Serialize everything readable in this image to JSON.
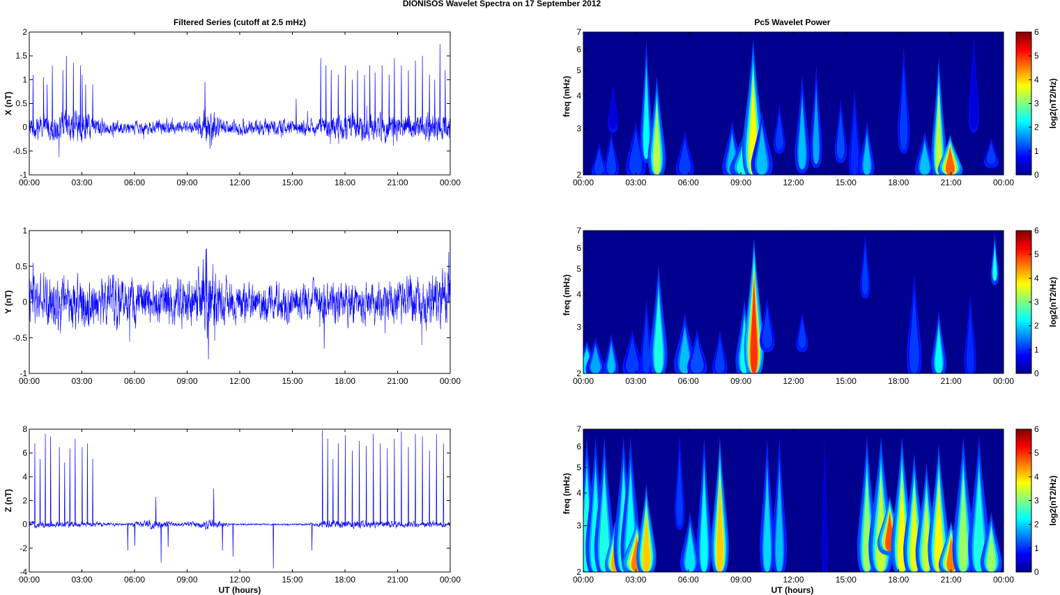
{
  "figure": {
    "title": "DIONISOS Wavelet Spectra on 17 September 2012",
    "left_column_title": "Filtered Series (cutoff at 2.5 mHz)",
    "right_column_title": "Pc5 Wavelet Power",
    "x_axis_label": "UT (hours)"
  },
  "colors": {
    "trace": "#0000ff",
    "spectrum_background": "#00008f",
    "axis": "#000000"
  },
  "chart_data": [
    {
      "type": "line",
      "panel": "x-series",
      "ylabel": "X (nT)",
      "xlim": [
        "00:00",
        "24:00"
      ],
      "ylim": [
        -1,
        2
      ],
      "x_ticks": [
        "00:00",
        "03:00",
        "06:00",
        "09:00",
        "12:00",
        "15:00",
        "18:00",
        "21:00",
        "00:00"
      ],
      "y_ticks": [
        "-1",
        "-0.5",
        "0",
        "0.5",
        "1",
        "1.5",
        "2"
      ],
      "noise_envelope_nT": {
        "hours": [
          0,
          3,
          4.5,
          9.5,
          10.2,
          11,
          16.5,
          18,
          21,
          24
        ],
        "amplitude": [
          0.15,
          0.25,
          0.1,
          0.1,
          0.35,
          0.12,
          0.12,
          0.2,
          0.2,
          0.2
        ]
      },
      "spikes": {
        "hours": [
          0.2,
          0.8,
          1.0,
          1.3,
          1.9,
          2.1,
          2.5,
          2.9,
          3.0,
          3.2,
          3.6,
          10.0,
          15.2,
          16.6,
          16.9,
          17.2,
          17.6,
          18.0,
          18.4,
          18.7,
          19.1,
          19.4,
          19.7,
          20.1,
          20.5,
          20.8,
          21.2,
          21.6,
          22.0,
          22.4,
          22.8,
          23.1,
          23.4,
          23.7
        ],
        "peak_nT": [
          1.1,
          1.05,
          0.9,
          1.3,
          1.2,
          1.5,
          1.35,
          1.3,
          1.1,
          0.9,
          0.9,
          0.95,
          0.6,
          1.45,
          1.3,
          1.2,
          1.1,
          1.3,
          1.0,
          1.2,
          1.1,
          1.3,
          1.15,
          1.3,
          1.1,
          1.45,
          1.3,
          1.2,
          1.4,
          1.5,
          1.1,
          1.0,
          1.75,
          1.2
        ]
      }
    },
    {
      "type": "line",
      "panel": "y-series",
      "ylabel": "Y (nT)",
      "xlim": [
        "00:00",
        "24:00"
      ],
      "ylim": [
        -1,
        1
      ],
      "x_ticks": [
        "00:00",
        "03:00",
        "06:00",
        "09:00",
        "12:00",
        "15:00",
        "18:00",
        "21:00",
        "00:00"
      ],
      "y_ticks": [
        "-1",
        "-0.5",
        "0",
        "0.5",
        "1"
      ],
      "noise_envelope_nT": {
        "hours": [
          0,
          3,
          6,
          9.5,
          10.2,
          11,
          16,
          18,
          21,
          24
        ],
        "amplitude": [
          0.25,
          0.25,
          0.22,
          0.25,
          0.45,
          0.2,
          0.18,
          0.22,
          0.2,
          0.3
        ]
      },
      "spikes": {
        "hours": [
          0.2,
          9.9,
          10.1,
          10.2,
          16.8,
          23.9
        ],
        "peak_nT": [
          0.55,
          0.6,
          0.75,
          -0.8,
          -0.65,
          0.7
        ]
      }
    },
    {
      "type": "line",
      "panel": "z-series",
      "ylabel": "Z (nT)",
      "xlim": [
        "00:00",
        "24:00"
      ],
      "ylim": [
        -4,
        8
      ],
      "x_ticks": [
        "00:00",
        "03:00",
        "06:00",
        "09:00",
        "12:00",
        "15:00",
        "18:00",
        "21:00",
        "00:00"
      ],
      "y_ticks": [
        "-4",
        "-2",
        "0",
        "2",
        "4",
        "6",
        "8"
      ],
      "noise_envelope_nT": {
        "hours": [
          0,
          4,
          5.5,
          7,
          8.5,
          10.5,
          11.5,
          16,
          17,
          24
        ],
        "amplitude": [
          0.2,
          0.15,
          0.05,
          0.3,
          0.1,
          0.3,
          0.05,
          0.05,
          0.25,
          0.15
        ]
      },
      "spikes": {
        "hours": [
          0.3,
          0.6,
          0.9,
          1.2,
          1.7,
          2.0,
          2.3,
          2.6,
          3.0,
          3.3,
          3.6,
          5.6,
          6.0,
          7.2,
          7.5,
          7.9,
          10.5,
          11.0,
          11.6,
          13.9,
          16.1,
          16.7,
          17.0,
          17.3,
          17.6,
          18.0,
          18.4,
          18.8,
          19.2,
          19.6,
          20.0,
          20.4,
          20.8,
          21.2,
          21.6,
          22.0,
          22.4,
          22.8,
          23.2,
          23.6
        ],
        "peak_nT": [
          6.8,
          5.5,
          7.6,
          7.4,
          6.5,
          5.2,
          6.4,
          7.2,
          6.5,
          6.8,
          5.5,
          -2.2,
          -1.8,
          2.3,
          -3.2,
          -1.9,
          3.0,
          -2.2,
          -2.7,
          -3.7,
          -2.2,
          7.9,
          7.2,
          5.5,
          6.8,
          7.5,
          6.2,
          7.0,
          6.6,
          7.6,
          6.8,
          6.4,
          7.2,
          7.8,
          6.5,
          7.6,
          7.4,
          6.2,
          7.6,
          6.8
        ]
      }
    },
    {
      "type": "heatmap",
      "panel": "x-spectrum",
      "ylabel": "freq (mHz)",
      "colorbar_label": "log2(nT2/Hz)",
      "colorbar_range": [
        0,
        6
      ],
      "colorbar_ticks": [
        "0",
        "1",
        "2",
        "3",
        "4",
        "5",
        "6"
      ],
      "xlim": [
        "00:00",
        "24:00"
      ],
      "ylim_mHz": [
        2,
        7
      ],
      "yscale": "log",
      "x_ticks": [
        "00:00",
        "03:00",
        "06:00",
        "09:00",
        "12:00",
        "15:00",
        "18:00",
        "21:00",
        "00:00"
      ],
      "y_ticks": [
        "2",
        "3",
        "4",
        "5",
        "6",
        "7"
      ],
      "features": [
        {
          "t": 0.9,
          "f_lo": 2.0,
          "f_hi": 2.7,
          "power": 2.0,
          "w": 0.15
        },
        {
          "t": 1.6,
          "f_lo": 2.0,
          "f_hi": 3.0,
          "power": 2.0,
          "w": 0.15
        },
        {
          "t": 1.7,
          "f_lo": 3.0,
          "f_hi": 4.5,
          "power": 1.5,
          "w": 0.1
        },
        {
          "t": 3.0,
          "f_lo": 2.0,
          "f_hi": 3.3,
          "power": 2.0,
          "w": 0.2
        },
        {
          "t": 3.6,
          "f_lo": 2.3,
          "f_hi": 7.0,
          "power": 3.0,
          "w": 0.12
        },
        {
          "t": 4.2,
          "f_lo": 2.0,
          "f_hi": 5.0,
          "power": 3.7,
          "w": 0.18
        },
        {
          "t": 5.8,
          "f_lo": 2.0,
          "f_hi": 3.0,
          "power": 2.0,
          "w": 0.18
        },
        {
          "t": 8.5,
          "f_lo": 2.0,
          "f_hi": 3.3,
          "power": 2.5,
          "w": 0.2
        },
        {
          "t": 9.2,
          "f_lo": 2.0,
          "f_hi": 3.0,
          "power": 3.2,
          "w": 0.3
        },
        {
          "t": 9.7,
          "f_lo": 2.0,
          "f_hi": 7.0,
          "power": 4.2,
          "w": 0.22
        },
        {
          "t": 10.2,
          "f_lo": 2.0,
          "f_hi": 3.6,
          "power": 2.5,
          "w": 0.22
        },
        {
          "t": 11.2,
          "f_lo": 2.5,
          "f_hi": 3.8,
          "power": 2.0,
          "w": 0.12
        },
        {
          "t": 12.5,
          "f_lo": 2.1,
          "f_hi": 5.0,
          "power": 2.5,
          "w": 0.15
        },
        {
          "t": 13.3,
          "f_lo": 2.2,
          "f_hi": 5.5,
          "power": 2.3,
          "w": 0.12
        },
        {
          "t": 14.7,
          "f_lo": 2.3,
          "f_hi": 4.0,
          "power": 2.2,
          "w": 0.12
        },
        {
          "t": 15.5,
          "f_lo": 2.0,
          "f_hi": 4.5,
          "power": 1.8,
          "w": 0.12
        },
        {
          "t": 16.2,
          "f_lo": 2.0,
          "f_hi": 3.3,
          "power": 2.5,
          "w": 0.15
        },
        {
          "t": 18.3,
          "f_lo": 2.5,
          "f_hi": 6.5,
          "power": 2.0,
          "w": 0.12
        },
        {
          "t": 19.5,
          "f_lo": 2.0,
          "f_hi": 3.0,
          "power": 2.5,
          "w": 0.2
        },
        {
          "t": 20.3,
          "f_lo": 2.0,
          "f_hi": 6.0,
          "power": 3.8,
          "w": 0.15
        },
        {
          "t": 20.95,
          "f_lo": 2.0,
          "f_hi": 2.9,
          "power": 5.2,
          "w": 0.25
        },
        {
          "t": 22.3,
          "f_lo": 3.0,
          "f_hi": 7.0,
          "power": 1.5,
          "w": 0.1
        },
        {
          "t": 23.3,
          "f_lo": 2.2,
          "f_hi": 2.8,
          "power": 2.0,
          "w": 0.15
        }
      ]
    },
    {
      "type": "heatmap",
      "panel": "y-spectrum",
      "ylabel": "freq (mHz)",
      "colorbar_label": "log2(nT2/Hz)",
      "colorbar_range": [
        0,
        6
      ],
      "colorbar_ticks": [
        "0",
        "1",
        "2",
        "3",
        "4",
        "5",
        "6"
      ],
      "xlim": [
        "00:00",
        "24:00"
      ],
      "ylim_mHz": [
        2,
        7
      ],
      "yscale": "log",
      "x_ticks": [
        "00:00",
        "03:00",
        "06:00",
        "09:00",
        "12:00",
        "15:00",
        "18:00",
        "21:00",
        "00:00"
      ],
      "y_ticks": [
        "2",
        "3",
        "4",
        "5",
        "6",
        "7"
      ],
      "features": [
        {
          "t": 0.2,
          "f_lo": 2.0,
          "f_hi": 2.7,
          "power": 2.8,
          "w": 0.25
        },
        {
          "t": 0.7,
          "f_lo": 2.0,
          "f_hi": 2.8,
          "power": 2.3,
          "w": 0.2
        },
        {
          "t": 1.6,
          "f_lo": 2.0,
          "f_hi": 2.9,
          "power": 2.5,
          "w": 0.15
        },
        {
          "t": 2.8,
          "f_lo": 2.0,
          "f_hi": 3.0,
          "power": 2.0,
          "w": 0.2
        },
        {
          "t": 3.6,
          "f_lo": 2.0,
          "f_hi": 4.0,
          "power": 2.0,
          "w": 0.12
        },
        {
          "t": 4.3,
          "f_lo": 2.0,
          "f_hi": 5.5,
          "power": 3.2,
          "w": 0.18
        },
        {
          "t": 5.8,
          "f_lo": 2.0,
          "f_hi": 3.5,
          "power": 2.5,
          "w": 0.22
        },
        {
          "t": 6.5,
          "f_lo": 2.0,
          "f_hi": 3.0,
          "power": 2.2,
          "w": 0.2
        },
        {
          "t": 7.8,
          "f_lo": 2.0,
          "f_hi": 3.0,
          "power": 2.0,
          "w": 0.15
        },
        {
          "t": 9.2,
          "f_lo": 2.0,
          "f_hi": 4.0,
          "power": 3.0,
          "w": 0.18
        },
        {
          "t": 9.75,
          "f_lo": 2.0,
          "f_hi": 7.0,
          "power": 5.5,
          "w": 0.2
        },
        {
          "t": 10.5,
          "f_lo": 2.5,
          "f_hi": 4.0,
          "power": 2.0,
          "w": 0.15
        },
        {
          "t": 12.5,
          "f_lo": 2.5,
          "f_hi": 3.5,
          "power": 2.0,
          "w": 0.12
        },
        {
          "t": 16.1,
          "f_lo": 4.0,
          "f_hi": 7.0,
          "power": 2.0,
          "w": 0.1
        },
        {
          "t": 18.9,
          "f_lo": 2.0,
          "f_hi": 5.0,
          "power": 2.0,
          "w": 0.15
        },
        {
          "t": 20.3,
          "f_lo": 2.0,
          "f_hi": 3.6,
          "power": 3.0,
          "w": 0.15
        },
        {
          "t": 22.1,
          "f_lo": 2.0,
          "f_hi": 4.2,
          "power": 1.8,
          "w": 0.12
        },
        {
          "t": 23.5,
          "f_lo": 4.5,
          "f_hi": 7.0,
          "power": 3.2,
          "w": 0.08
        }
      ]
    },
    {
      "type": "heatmap",
      "panel": "z-spectrum",
      "ylabel": "freq (mHz)",
      "colorbar_label": "log2(nT2/Hz)",
      "colorbar_range": [
        0,
        6
      ],
      "colorbar_ticks": [
        "0",
        "1",
        "2",
        "3",
        "4",
        "5",
        "6"
      ],
      "xlim": [
        "00:00",
        "24:00"
      ],
      "ylim_mHz": [
        2,
        7
      ],
      "yscale": "log",
      "x_ticks": [
        "00:00",
        "03:00",
        "06:00",
        "09:00",
        "12:00",
        "15:00",
        "18:00",
        "21:00",
        "00:00"
      ],
      "y_ticks": [
        "2",
        "3",
        "4",
        "5",
        "6",
        "7"
      ],
      "features": [
        {
          "t": 0.2,
          "f_lo": 2.0,
          "f_hi": 7.0,
          "power": 3.2,
          "w": 0.2
        },
        {
          "t": 0.7,
          "f_lo": 2.0,
          "f_hi": 7.0,
          "power": 3.0,
          "w": 0.2
        },
        {
          "t": 1.2,
          "f_lo": 2.0,
          "f_hi": 7.0,
          "power": 3.2,
          "w": 0.2
        },
        {
          "t": 1.8,
          "f_lo": 2.0,
          "f_hi": 3.2,
          "power": 4.7,
          "w": 0.2
        },
        {
          "t": 2.3,
          "f_lo": 2.0,
          "f_hi": 7.0,
          "power": 3.2,
          "w": 0.2
        },
        {
          "t": 2.7,
          "f_lo": 2.0,
          "f_hi": 7.0,
          "power": 3.0,
          "w": 0.2
        },
        {
          "t": 3.05,
          "f_lo": 2.0,
          "f_hi": 3.2,
          "power": 5.0,
          "w": 0.3
        },
        {
          "t": 3.6,
          "f_lo": 2.0,
          "f_hi": 4.5,
          "power": 4.5,
          "w": 0.2
        },
        {
          "t": 5.5,
          "f_lo": 3.0,
          "f_hi": 7.0,
          "power": 2.0,
          "w": 0.1
        },
        {
          "t": 6.1,
          "f_lo": 2.0,
          "f_hi": 3.5,
          "power": 2.8,
          "w": 0.2
        },
        {
          "t": 6.9,
          "f_lo": 2.0,
          "f_hi": 7.0,
          "power": 3.0,
          "w": 0.15
        },
        {
          "t": 7.8,
          "f_lo": 2.0,
          "f_hi": 7.0,
          "power": 4.5,
          "w": 0.18
        },
        {
          "t": 10.5,
          "f_lo": 2.0,
          "f_hi": 7.0,
          "power": 2.7,
          "w": 0.15
        },
        {
          "t": 11.2,
          "f_lo": 2.0,
          "f_hi": 7.0,
          "power": 2.5,
          "w": 0.15
        },
        {
          "t": 13.8,
          "f_lo": 2.0,
          "f_hi": 7.0,
          "power": 1.2,
          "w": 0.06
        },
        {
          "t": 16.2,
          "f_lo": 2.0,
          "f_hi": 7.0,
          "power": 3.5,
          "w": 0.2
        },
        {
          "t": 17.0,
          "f_lo": 2.0,
          "f_hi": 7.0,
          "power": 3.8,
          "w": 0.25
        },
        {
          "t": 17.5,
          "f_lo": 2.4,
          "f_hi": 4.0,
          "power": 5.3,
          "w": 0.25
        },
        {
          "t": 18.2,
          "f_lo": 2.0,
          "f_hi": 7.0,
          "power": 4.2,
          "w": 0.22
        },
        {
          "t": 18.9,
          "f_lo": 2.0,
          "f_hi": 6.0,
          "power": 4.0,
          "w": 0.22
        },
        {
          "t": 19.6,
          "f_lo": 2.0,
          "f_hi": 5.5,
          "power": 3.8,
          "w": 0.22
        },
        {
          "t": 20.3,
          "f_lo": 2.0,
          "f_hi": 6.5,
          "power": 4.2,
          "w": 0.22
        },
        {
          "t": 21.0,
          "f_lo": 2.0,
          "f_hi": 3.2,
          "power": 5.0,
          "w": 0.25
        },
        {
          "t": 21.7,
          "f_lo": 2.0,
          "f_hi": 7.0,
          "power": 3.5,
          "w": 0.22
        },
        {
          "t": 22.6,
          "f_lo": 2.0,
          "f_hi": 7.0,
          "power": 3.2,
          "w": 0.22
        },
        {
          "t": 23.3,
          "f_lo": 2.0,
          "f_hi": 3.5,
          "power": 3.5,
          "w": 0.22
        }
      ]
    }
  ]
}
